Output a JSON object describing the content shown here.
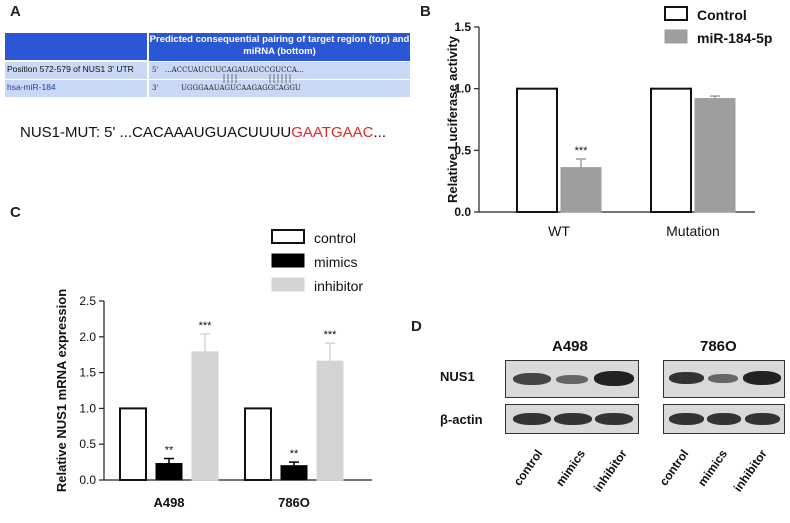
{
  "panels": {
    "a": "A",
    "b": "B",
    "c": "C",
    "d": "D"
  },
  "panel_a": {
    "header": "Predicted consequential pairing of target region (top) and miRNA (bottom)",
    "row1_label": "Position 572-579 of NUS1 3' UTR",
    "row1_prime": "5'",
    "row1_seq": "...ACCUAUCUUCAGAUAUCCGUCCA...",
    "row2_label": "hsa-miR-184",
    "row2_prime": "3'",
    "row2_seq": "UGGGAAUAGUCAAGAGGCAGGU",
    "mut_prefix": "NUS1-MUT: 5' ...CACAAAUGUACUUUU",
    "mut_red": "GAATGAAC",
    "mut_suffix": "..."
  },
  "chart_data": [
    {
      "type": "bar",
      "panel": "B",
      "ylabel": "Relative Luciferase activity",
      "ylim": [
        0,
        1.5
      ],
      "yticks": [
        "0.0",
        "0.5",
        "1.0",
        "1.5"
      ],
      "categories": [
        "WT",
        "Mutation"
      ],
      "series": [
        {
          "name": "Control",
          "values": [
            1.0,
            1.0
          ],
          "color": "#ffffff"
        },
        {
          "name": "miR-184-5p",
          "values": [
            0.36,
            0.92
          ],
          "errors": [
            0.07,
            0.02
          ],
          "color": "#9e9e9e"
        }
      ],
      "annotations": [
        {
          "category": "WT",
          "series": "miR-184-5p",
          "text": "***"
        }
      ],
      "legend": "top-right"
    },
    {
      "type": "bar",
      "panel": "C",
      "ylabel": "Relative NUS1 mRNA expression",
      "ylim": [
        0,
        2.5
      ],
      "yticks": [
        "0.0",
        "0.5",
        "1.0",
        "1.5",
        "2.0",
        "2.5"
      ],
      "categories": [
        "A498",
        "786O"
      ],
      "series": [
        {
          "name": "control",
          "values": [
            1.0,
            1.0
          ],
          "color": "#ffffff"
        },
        {
          "name": "mimics",
          "values": [
            0.23,
            0.2
          ],
          "errors": [
            0.07,
            0.05
          ],
          "color": "#000000"
        },
        {
          "name": "inhibitor",
          "values": [
            1.79,
            1.66
          ],
          "errors": [
            0.25,
            0.25
          ],
          "color": "#d4d4d4"
        }
      ],
      "annotations": [
        {
          "category": "A498",
          "series": "mimics",
          "text": "**"
        },
        {
          "category": "A498",
          "series": "inhibitor",
          "text": "***"
        },
        {
          "category": "786O",
          "series": "mimics",
          "text": "**"
        },
        {
          "category": "786O",
          "series": "inhibitor",
          "text": "***"
        }
      ],
      "legend": "top"
    }
  ],
  "panel_d": {
    "title_left": "A498",
    "title_right": "786O",
    "row1_label": "NUS1",
    "row2_label": "β-actin",
    "lanes": [
      "control",
      "mimics",
      "inhibitor"
    ]
  }
}
